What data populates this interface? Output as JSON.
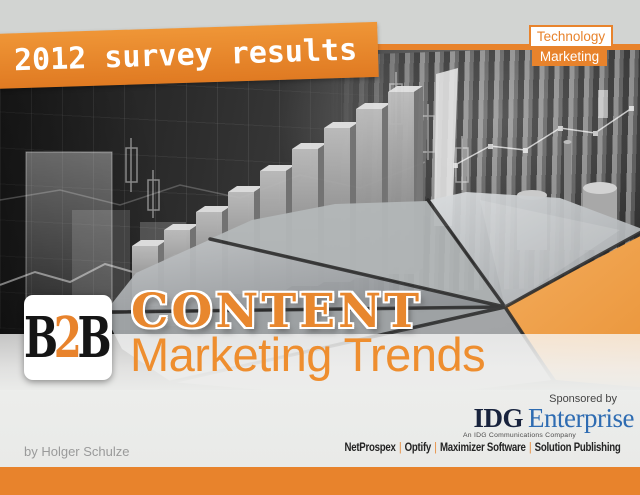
{
  "banner": {
    "text": "2012 survey results"
  },
  "badge": {
    "top": "Technology",
    "bottom": "Marketing"
  },
  "logo_b2b": {
    "b1": "B",
    "two": "2",
    "b2": "B"
  },
  "title": {
    "line1": "CONTENT",
    "line2": "Marketing Trends"
  },
  "sponsor": {
    "label": "Sponsored by",
    "idg_primary": "IDG",
    "idg_secondary": "Enterprise",
    "idg_tagline": "An IDG Communications Company"
  },
  "partners": {
    "items": [
      "NetProspex",
      "Optify",
      "Maximizer Software",
      "Solution Publishing"
    ],
    "separator": "|"
  },
  "author": {
    "credit": "by Holger Schulze"
  },
  "colors": {
    "orange": "#e8832c",
    "orange_bright": "#ef9637",
    "orange_deep": "#e07a22",
    "idg_navy": "#18233d",
    "idg_blue": "#2e6cb2"
  }
}
